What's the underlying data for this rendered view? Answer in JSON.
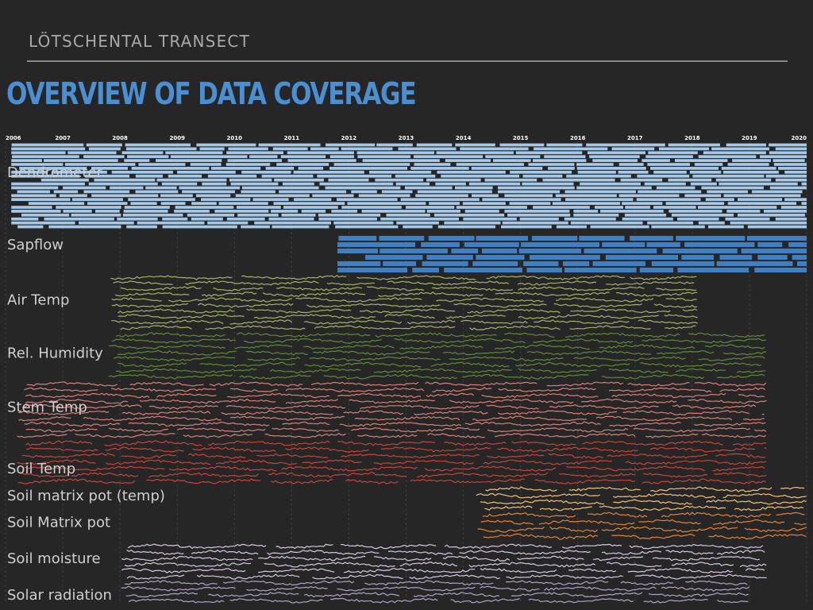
{
  "header": {
    "section": "LÖTSCHENTAL TRANSECT",
    "title": "OVERVIEW OF DATA COVERAGE"
  },
  "chart_data": {
    "type": "timeline",
    "x_axis": {
      "ticks": [
        "2006",
        "2007",
        "2008",
        "2009",
        "2010",
        "2011",
        "2012",
        "2013",
        "2014",
        "2015",
        "2016",
        "2017",
        "2018",
        "2019",
        "2020"
      ],
      "range": [
        2006,
        2020
      ],
      "grid": true
    },
    "series": [
      {
        "name": "Dendrometer",
        "color": "#a6c9e8",
        "style": "bars",
        "lanes": 22,
        "start": 2006.1,
        "end": 2020.0,
        "label_lane": 7
      },
      {
        "name": "Sapflow",
        "color": "#3f7fc4",
        "style": "bars",
        "lanes": 6,
        "start": 2011.8,
        "end": 2020.0,
        "label_lane": 1
      },
      {
        "name": "Air Temp",
        "color": "#a3b36a",
        "style": "lines",
        "lanes": 10,
        "start": 2007.8,
        "end": 2018.1,
        "label_lane": 4
      },
      {
        "name": "Rel. Humidity",
        "color": "#5e8a3a",
        "style": "lines",
        "lanes": 8,
        "start": 2007.8,
        "end": 2019.3,
        "label_lane": 3
      },
      {
        "name": "Stem Temp",
        "color": "#d8807a",
        "style": "lines",
        "lanes": 10,
        "start": 2006.2,
        "end": 2019.3,
        "label_lane": 4
      },
      {
        "name": "Soil Temp",
        "color": "#c8443a",
        "style": "lines",
        "lanes": 7,
        "start": 2006.2,
        "end": 2019.3,
        "label_lane": 4
      },
      {
        "name": "Soil matrix  pot (temp)",
        "color": "#f2c27c",
        "style": "lines",
        "lanes": 4,
        "start": 2014.2,
        "end": 2020.0,
        "label_lane": 1
      },
      {
        "name": "Soil Matrix pot",
        "color": "#e0853a",
        "style": "lines",
        "lanes": 4,
        "start": 2014.2,
        "end": 2020.0,
        "label_lane": 1
      },
      {
        "name": "Soil moisture",
        "color": "#d9c9e3",
        "style": "lines",
        "lanes": 6,
        "start": 2008.0,
        "end": 2019.3,
        "label_lane": 2
      },
      {
        "name": "Solar radiation",
        "color": "#b3a2c8",
        "style": "lines",
        "lanes": 4,
        "start": 2008.0,
        "end": 2019.0,
        "label_lane": 2
      }
    ]
  }
}
